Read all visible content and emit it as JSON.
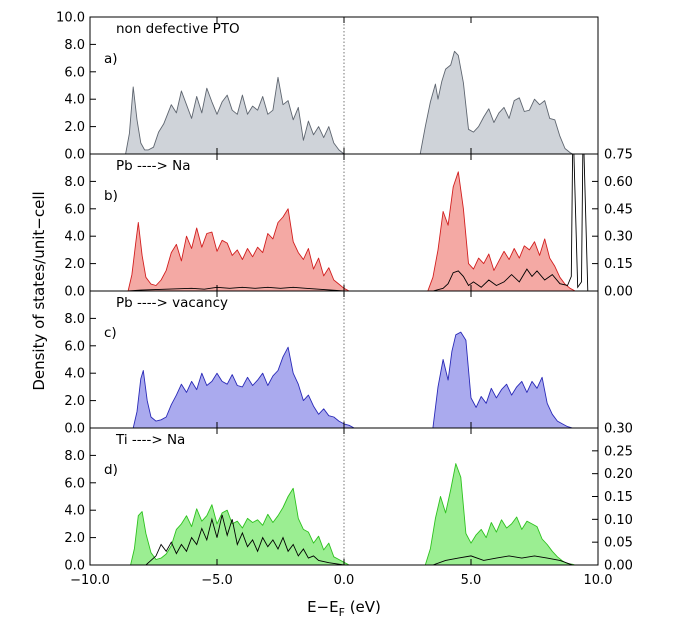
{
  "chart_data": {
    "type": "area",
    "xlabel": "E−E",
    "xlabel_sub": "F",
    "xlabel_unit": " (eV)",
    "ylabel": "Density of states/unit−cell",
    "xlim": [
      -10,
      10
    ],
    "x_ticks": [
      -10,
      -5,
      0,
      5,
      10
    ],
    "x_tick_labels": [
      "−10.0",
      "−5.0",
      "0.0",
      "5.0",
      "10.0"
    ],
    "fermi_line": 0.0,
    "panels": [
      {
        "tag": "a)",
        "title": "non defective PTO",
        "ylim": [
          0,
          10
        ],
        "y_ticks": [
          0,
          2,
          4,
          6,
          8,
          10
        ],
        "y_tick_labels": [
          "0.0",
          "2.0",
          "4.0",
          "6.0",
          "8.0",
          "10.0"
        ],
        "right_ylim": null,
        "right_ticks": [],
        "right_tick_labels": [],
        "fill_color": "#cfd3d9",
        "line_color": "#5f6670",
        "series": [
          {
            "x": [
              -8.6,
              -8.45,
              -8.3,
              -8.15,
              -8.0,
              -7.85,
              -7.7,
              -7.5,
              -7.3,
              -7.1,
              -6.95,
              -6.8,
              -6.6,
              -6.4,
              -6.2,
              -6.0,
              -5.8,
              -5.6,
              -5.4,
              -5.2,
              -5.0,
              -4.8,
              -4.6,
              -4.4,
              -4.2,
              -4.0,
              -3.8,
              -3.6,
              -3.4,
              -3.2,
              -3.0,
              -2.8,
              -2.6,
              -2.4,
              -2.2,
              -2.0,
              -1.8,
              -1.6,
              -1.4,
              -1.2,
              -1.0,
              -0.8,
              -0.6,
              -0.4,
              -0.2,
              0.0
            ],
            "y": [
              0,
              1.5,
              4.9,
              2.5,
              0.8,
              0.3,
              0.3,
              0.5,
              1.6,
              2.2,
              2.9,
              3.6,
              3.0,
              4.6,
              3.6,
              2.6,
              4.2,
              3.0,
              4.8,
              3.8,
              2.9,
              3.8,
              4.3,
              3.2,
              2.9,
              4.3,
              2.9,
              3.5,
              3.2,
              4.2,
              2.9,
              3.2,
              5.6,
              3.6,
              3.9,
              2.5,
              3.4,
              1.0,
              2.4,
              1.4,
              2.0,
              1.2,
              2.0,
              0.8,
              0.3,
              0
            ]
          },
          {
            "x": [
              3.0,
              3.2,
              3.4,
              3.6,
              3.7,
              3.85,
              4.0,
              4.2,
              4.35,
              4.5,
              4.7,
              4.9,
              5.1,
              5.3,
              5.5,
              5.7,
              5.9,
              6.1,
              6.3,
              6.5,
              6.7,
              6.9,
              7.1,
              7.3,
              7.5,
              7.7,
              7.9,
              8.1,
              8.3,
              8.5,
              8.7,
              8.9,
              9.0
            ],
            "y": [
              0,
              2.0,
              3.8,
              5.1,
              4.0,
              5.3,
              6.2,
              6.5,
              7.5,
              7.2,
              5.2,
              1.8,
              1.6,
              2.0,
              2.7,
              3.3,
              2.3,
              3.0,
              3.4,
              2.6,
              3.9,
              4.1,
              3.1,
              3.2,
              4.0,
              3.6,
              3.9,
              2.6,
              2.5,
              1.3,
              0.4,
              0.1,
              0
            ]
          }
        ],
        "overlay": []
      },
      {
        "tag": "b)",
        "title": "Pb ----> Na",
        "ylim": [
          0,
          10
        ],
        "y_ticks": [
          0,
          2,
          4,
          6,
          8
        ],
        "y_tick_labels": [
          "0.0",
          "2.0",
          "4.0",
          "6.0",
          "8.0"
        ],
        "right_ylim": [
          0,
          0.75
        ],
        "right_ticks": [
          0,
          0.15,
          0.3,
          0.45,
          0.6,
          0.75
        ],
        "right_tick_labels": [
          "0.00",
          "0.15",
          "0.30",
          "0.45",
          "0.60",
          "0.75"
        ],
        "fill_color": "#f4a9a4",
        "line_color": "#d21f1f",
        "series": [
          {
            "x": [
              -8.5,
              -8.35,
              -8.2,
              -8.1,
              -7.95,
              -7.8,
              -7.6,
              -7.4,
              -7.2,
              -7.0,
              -6.8,
              -6.6,
              -6.4,
              -6.2,
              -6.0,
              -5.8,
              -5.6,
              -5.4,
              -5.2,
              -5.0,
              -4.8,
              -4.6,
              -4.4,
              -4.2,
              -4.0,
              -3.8,
              -3.6,
              -3.4,
              -3.2,
              -3.0,
              -2.8,
              -2.6,
              -2.4,
              -2.2,
              -2.0,
              -1.8,
              -1.6,
              -1.4,
              -1.2,
              -1.0,
              -0.8,
              -0.6,
              -0.4,
              -0.2,
              0.0,
              0.2
            ],
            "y": [
              0,
              1.2,
              3.5,
              5.0,
              2.6,
              1.0,
              0.5,
              0.4,
              0.8,
              1.5,
              2.8,
              3.4,
              2.2,
              4.0,
              3.1,
              4.6,
              3.2,
              4.2,
              4.3,
              2.9,
              3.7,
              3.5,
              2.6,
              3.0,
              2.3,
              3.1,
              2.5,
              3.2,
              2.8,
              4.2,
              3.8,
              5.0,
              5.4,
              6.0,
              3.6,
              2.8,
              2.3,
              3.1,
              1.6,
              2.4,
              1.1,
              1.7,
              0.8,
              0.5,
              0.2,
              0
            ]
          },
          {
            "x": [
              3.3,
              3.5,
              3.7,
              3.9,
              4.1,
              4.3,
              4.5,
              4.7,
              4.9,
              5.1,
              5.3,
              5.5,
              5.7,
              5.9,
              6.1,
              6.3,
              6.5,
              6.7,
              6.9,
              7.1,
              7.3,
              7.5,
              7.7,
              7.9,
              8.1,
              8.3,
              8.5,
              8.7,
              8.9,
              9.1
            ],
            "y": [
              0,
              1.0,
              3.0,
              5.8,
              4.8,
              7.6,
              8.7,
              6.0,
              2.0,
              1.6,
              2.4,
              2.0,
              2.7,
              1.5,
              2.2,
              2.9,
              2.3,
              3.1,
              2.4,
              3.3,
              3.0,
              3.6,
              2.6,
              3.8,
              2.4,
              1.8,
              1.0,
              0.5,
              0.2,
              0
            ]
          }
        ],
        "overlay": [
          {
            "x": [
              -8.5,
              -8.0,
              -7.0,
              -6.0,
              -5.5,
              -5.0,
              -4.5,
              -4.0,
              -3.5,
              -3.0,
              -2.5,
              -2.0,
              -1.5,
              -1.0,
              0.0,
              3.5,
              3.9,
              4.1,
              4.3,
              4.5,
              4.7,
              4.9,
              5.1,
              5.4,
              5.7,
              6.0,
              6.3,
              6.6,
              6.9,
              7.2,
              7.4,
              7.6,
              7.9,
              8.2,
              8.5,
              8.8,
              8.95,
              9.0,
              9.05,
              9.2,
              9.35,
              9.4,
              9.45,
              9.6
            ],
            "y": [
              0,
              0.005,
              0.01,
              0.015,
              0.01,
              0.02,
              0.015,
              0.02,
              0.015,
              0.02,
              0.015,
              0.02,
              0.015,
              0.01,
              0,
              0,
              0.015,
              0.04,
              0.1,
              0.11,
              0.08,
              0.03,
              0.05,
              0.02,
              0.06,
              0.03,
              0.05,
              0.09,
              0.05,
              0.12,
              0.08,
              0.11,
              0.06,
              0.09,
              0.04,
              0.03,
              0.08,
              0.75,
              0.75,
              0.02,
              0.05,
              0.75,
              0.75,
              0
            ]
          }
        ]
      },
      {
        "tag": "c)",
        "title": "Pb ----> vacancy",
        "ylim": [
          0,
          10
        ],
        "y_ticks": [
          0,
          2,
          4,
          6,
          8
        ],
        "y_tick_labels": [
          "0.0",
          "2.0",
          "4.0",
          "6.0",
          "8.0"
        ],
        "right_ylim": null,
        "right_ticks": [],
        "right_tick_labels": [],
        "fill_color": "#aaaaee",
        "line_color": "#2a2ab8",
        "series": [
          {
            "x": [
              -8.3,
              -8.15,
              -8.0,
              -7.9,
              -7.75,
              -7.6,
              -7.4,
              -7.2,
              -7.0,
              -6.8,
              -6.6,
              -6.4,
              -6.2,
              -6.0,
              -5.8,
              -5.6,
              -5.4,
              -5.2,
              -5.0,
              -4.8,
              -4.6,
              -4.4,
              -4.2,
              -4.0,
              -3.8,
              -3.6,
              -3.4,
              -3.2,
              -3.0,
              -2.8,
              -2.6,
              -2.4,
              -2.2,
              -2.0,
              -1.8,
              -1.6,
              -1.4,
              -1.2,
              -1.0,
              -0.8,
              -0.6,
              -0.4,
              -0.2,
              0.0,
              0.2,
              0.4
            ],
            "y": [
              0,
              1.2,
              3.6,
              4.2,
              2.0,
              0.8,
              0.5,
              0.6,
              0.8,
              1.7,
              2.4,
              3.2,
              2.6,
              3.4,
              2.8,
              4.0,
              3.1,
              3.4,
              4.0,
              3.4,
              3.2,
              3.9,
              3.1,
              3.0,
              3.7,
              3.1,
              3.5,
              4.0,
              3.1,
              3.8,
              4.2,
              5.2,
              5.9,
              4.0,
              3.2,
              2.0,
              2.4,
              1.6,
              1.0,
              1.4,
              0.9,
              0.8,
              0.5,
              0.3,
              0.2,
              0
            ]
          },
          {
            "x": [
              3.5,
              3.7,
              3.9,
              4.1,
              4.25,
              4.4,
              4.6,
              4.8,
              5.0,
              5.2,
              5.4,
              5.6,
              5.8,
              6.0,
              6.2,
              6.4,
              6.6,
              6.8,
              7.0,
              7.2,
              7.4,
              7.6,
              7.8,
              8.0,
              8.2,
              8.4,
              8.6,
              8.8,
              9.0
            ],
            "y": [
              0,
              3.0,
              5.0,
              3.5,
              5.6,
              6.8,
              7.0,
              6.4,
              2.2,
              1.5,
              2.3,
              1.8,
              2.9,
              2.2,
              2.8,
              3.2,
              2.4,
              3.0,
              3.4,
              2.6,
              3.4,
              2.9,
              3.7,
              1.8,
              1.0,
              0.5,
              0.3,
              0.1,
              0
            ]
          }
        ],
        "overlay": []
      },
      {
        "tag": "d)",
        "title": "Ti ----> Na",
        "ylim": [
          0,
          10
        ],
        "y_ticks": [
          0,
          2,
          4,
          6,
          8
        ],
        "y_tick_labels": [
          "0.0",
          "2.0",
          "4.0",
          "6.0",
          "8.0"
        ],
        "right_ylim": [
          0,
          0.3
        ],
        "right_ticks": [
          0,
          0.05,
          0.1,
          0.15,
          0.2,
          0.25,
          0.3
        ],
        "right_tick_labels": [
          "0.00",
          "0.05",
          "0.10",
          "0.15",
          "0.20",
          "0.25",
          "0.30"
        ],
        "fill_color": "#9bee92",
        "line_color": "#2ec21f",
        "series": [
          {
            "x": [
              -8.4,
              -8.25,
              -8.1,
              -7.95,
              -7.8,
              -7.6,
              -7.4,
              -7.2,
              -7.0,
              -6.8,
              -6.6,
              -6.4,
              -6.2,
              -6.0,
              -5.8,
              -5.6,
              -5.4,
              -5.2,
              -5.0,
              -4.8,
              -4.6,
              -4.4,
              -4.2,
              -4.0,
              -3.8,
              -3.6,
              -3.4,
              -3.2,
              -3.0,
              -2.8,
              -2.6,
              -2.4,
              -2.2,
              -2.0,
              -1.8,
              -1.6,
              -1.4,
              -1.2,
              -1.0,
              -0.8,
              -0.6,
              -0.4,
              -0.2,
              0.0,
              0.2
            ],
            "y": [
              0,
              1.2,
              3.6,
              3.9,
              2.3,
              0.9,
              0.4,
              0.5,
              0.8,
              1.4,
              2.6,
              3.0,
              3.6,
              2.8,
              4.1,
              3.2,
              3.6,
              4.4,
              3.0,
              3.8,
              4.0,
              3.0,
              3.2,
              2.7,
              3.4,
              3.1,
              3.3,
              2.9,
              3.7,
              3.1,
              3.6,
              4.2,
              5.0,
              5.6,
              3.4,
              2.6,
              2.4,
              1.6,
              2.1,
              1.1,
              1.6,
              0.6,
              0.4,
              0.2,
              0
            ]
          },
          {
            "x": [
              3.2,
              3.4,
              3.6,
              3.8,
              4.0,
              4.2,
              4.4,
              4.6,
              4.8,
              5.0,
              5.2,
              5.4,
              5.6,
              5.8,
              6.0,
              6.2,
              6.4,
              6.6,
              6.8,
              7.0,
              7.2,
              7.4,
              7.6,
              7.8,
              8.0,
              8.2,
              8.4,
              8.6,
              8.8,
              9.0,
              9.1
            ],
            "y": [
              0,
              1.2,
              3.4,
              5.0,
              3.8,
              5.5,
              7.4,
              6.4,
              2.3,
              1.6,
              2.2,
              2.6,
              2.0,
              3.1,
              2.4,
              3.3,
              2.7,
              3.0,
              3.5,
              2.6,
              3.2,
              3.0,
              2.8,
              1.9,
              1.5,
              1.0,
              0.6,
              0.3,
              0.1,
              0.05,
              0
            ]
          }
        ],
        "overlay": [
          {
            "x": [
              -7.8,
              -7.4,
              -7.2,
              -7.0,
              -6.8,
              -6.6,
              -6.4,
              -6.2,
              -6.0,
              -5.8,
              -5.6,
              -5.4,
              -5.2,
              -5.0,
              -4.8,
              -4.6,
              -4.4,
              -4.2,
              -4.0,
              -3.8,
              -3.6,
              -3.4,
              -3.2,
              -3.0,
              -2.8,
              -2.6,
              -2.4,
              -2.2,
              -2.0,
              -1.8,
              -1.6,
              -1.4,
              -1.2,
              -1.0,
              -0.6,
              0.0,
              3.5,
              4.0,
              4.5,
              5.0,
              5.5,
              6.0,
              6.5,
              7.0,
              7.5,
              8.0,
              8.5,
              9.0
            ],
            "y": [
              0,
              0.02,
              0.045,
              0.03,
              0.05,
              0.025,
              0.045,
              0.03,
              0.06,
              0.045,
              0.08,
              0.055,
              0.1,
              0.06,
              0.11,
              0.065,
              0.1,
              0.045,
              0.07,
              0.04,
              0.055,
              0.03,
              0.06,
              0.04,
              0.055,
              0.035,
              0.06,
              0.03,
              0.045,
              0.02,
              0.035,
              0.015,
              0.02,
              0.01,
              0.005,
              0,
              0,
              0.01,
              0.015,
              0.02,
              0.01,
              0.015,
              0.02,
              0.015,
              0.02,
              0.015,
              0.01,
              0
            ]
          }
        ]
      }
    ]
  }
}
